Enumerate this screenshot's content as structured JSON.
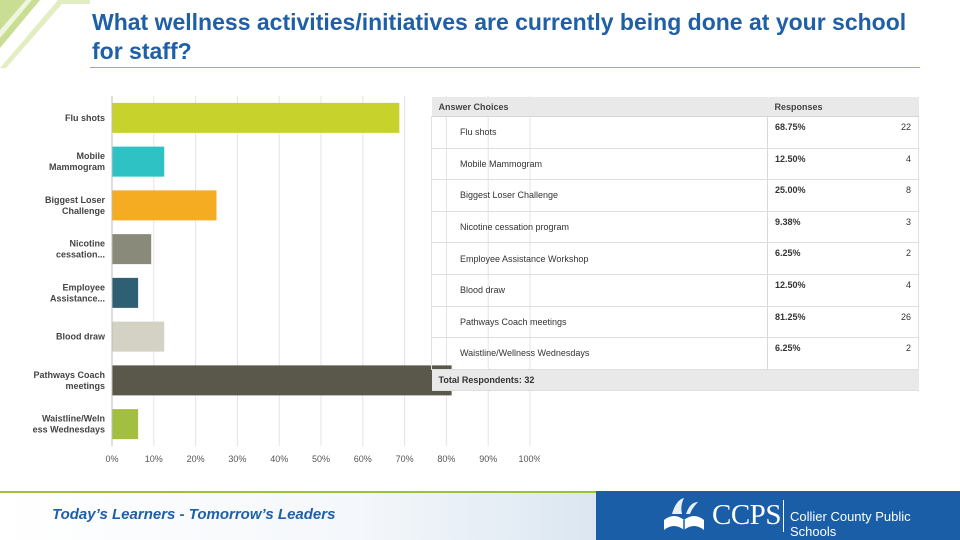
{
  "title": "What wellness activities/initiatives are currently being done at your school for staff?",
  "chart_data": {
    "type": "bar",
    "orientation": "horizontal",
    "categories": [
      [
        "Flu shots"
      ],
      [
        "Mobile",
        "Mammogram"
      ],
      [
        "Biggest Loser",
        "Challenge"
      ],
      [
        "Nicotine",
        "cessation..."
      ],
      [
        "Employee",
        "Assistance..."
      ],
      [
        "Blood draw"
      ],
      [
        "Pathways Coach",
        "meetings"
      ],
      [
        "Waistline/Weln",
        "ess Wednesdays"
      ]
    ],
    "values": [
      68.75,
      12.5,
      25.0,
      9.38,
      6.25,
      12.5,
      81.25,
      6.25
    ],
    "colors": [
      "#c8d22c",
      "#2ec2c4",
      "#f5ac22",
      "#8a8a7b",
      "#2e5f73",
      "#d4d2c4",
      "#5a584a",
      "#a3bf3f"
    ],
    "xlim": [
      0,
      100
    ],
    "xticks": [
      "0%",
      "10%",
      "20%",
      "30%",
      "40%",
      "50%",
      "60%",
      "70%",
      "80%",
      "90%",
      "100%"
    ],
    "grid": true
  },
  "table": {
    "headers": [
      "Answer Choices",
      "Responses"
    ],
    "rows": [
      {
        "choice": "Flu shots",
        "percent": "68.75%",
        "count": "22"
      },
      {
        "choice": "Mobile Mammogram",
        "percent": "12.50%",
        "count": "4"
      },
      {
        "choice": "Biggest Loser Challenge",
        "percent": "25.00%",
        "count": "8"
      },
      {
        "choice": "Nicotine cessation program",
        "percent": "9.38%",
        "count": "3"
      },
      {
        "choice": "Employee Assistance Workshop",
        "percent": "6.25%",
        "count": "2"
      },
      {
        "choice": "Blood draw",
        "percent": "12.50%",
        "count": "4"
      },
      {
        "choice": "Pathways Coach meetings",
        "percent": "81.25%",
        "count": "26"
      },
      {
        "choice": "Waistline/Wellness Wednesdays",
        "percent": "6.25%",
        "count": "2"
      }
    ],
    "total_label": "Total Respondents: 32"
  },
  "footer": {
    "tagline": "Today’s Learners - Tomorrow’s Leaders",
    "logo_text": "CCPS",
    "org_name": "Collier County Public Schools"
  },
  "colors": {
    "title": "#1f5fa8",
    "accent": "#9cc13a",
    "brand": "#1a5ea8"
  }
}
